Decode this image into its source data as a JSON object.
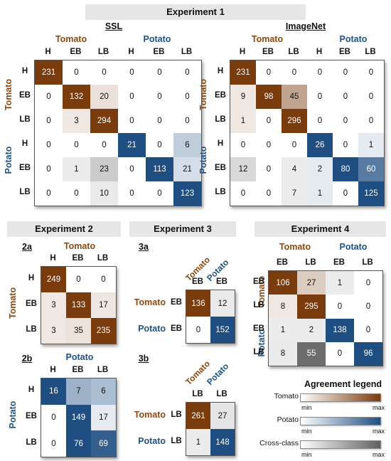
{
  "colors": {
    "tomato_text": "#8c4a12",
    "potato_text": "#1e5285",
    "tomato_max": "#7a3b0d",
    "potato_max": "#1f4f82",
    "cross_max": "#606060"
  },
  "experiment1": {
    "title": "Experiment 1",
    "ssl": {
      "title": "SSL",
      "group_tomato": "Tomato",
      "group_potato": "Potato",
      "labels": [
        "H",
        "EB",
        "LB",
        "H",
        "EB",
        "LB"
      ],
      "values": [
        [
          231,
          0,
          0,
          0,
          0,
          0
        ],
        [
          0,
          132,
          20,
          0,
          0,
          0
        ],
        [
          0,
          3,
          294,
          0,
          0,
          0
        ],
        [
          0,
          0,
          0,
          21,
          0,
          6
        ],
        [
          0,
          1,
          23,
          0,
          113,
          21
        ],
        [
          0,
          0,
          10,
          0,
          0,
          123
        ]
      ]
    },
    "imagenet": {
      "title": "ImageNet",
      "group_tomato": "Tomato",
      "group_potato": "Potato",
      "labels": [
        "H",
        "EB",
        "LB",
        "H",
        "EB",
        "LB"
      ],
      "values": [
        [
          231,
          0,
          0,
          0,
          0,
          0
        ],
        [
          9,
          98,
          45,
          0,
          0,
          0
        ],
        [
          1,
          0,
          296,
          0,
          0,
          0
        ],
        [
          0,
          0,
          0,
          26,
          0,
          1
        ],
        [
          12,
          0,
          4,
          2,
          80,
          60
        ],
        [
          0,
          0,
          7,
          1,
          0,
          125
        ]
      ]
    }
  },
  "experiment2": {
    "title": "Experiment 2",
    "a": {
      "title": "2a",
      "group": "Tomato",
      "labels": [
        "H",
        "EB",
        "LB"
      ],
      "values": [
        [
          249,
          0,
          0
        ],
        [
          3,
          133,
          17
        ],
        [
          3,
          35,
          235
        ]
      ]
    },
    "b": {
      "title": "2b",
      "group": "Potato",
      "labels": [
        "H",
        "EB",
        "LB"
      ],
      "values": [
        [
          16,
          7,
          6
        ],
        [
          0,
          149,
          17
        ],
        [
          0,
          76,
          69
        ]
      ]
    }
  },
  "experiment3": {
    "title": "Experiment 3",
    "a": {
      "title": "3a",
      "col_groups": [
        "Tomato",
        "Potato"
      ],
      "col_labels": [
        "EB",
        "EB"
      ],
      "row_groups": [
        "Tomato",
        "Potato"
      ],
      "row_labels": [
        "EB",
        "EB"
      ],
      "values": [
        [
          136,
          12
        ],
        [
          0,
          152
        ]
      ]
    },
    "b": {
      "title": "3b",
      "col_groups": [
        "Tomato",
        "Potato"
      ],
      "col_labels": [
        "LB",
        "LB"
      ],
      "row_groups": [
        "Tomato",
        "Potato"
      ],
      "row_labels": [
        "LB",
        "LB"
      ],
      "values": [
        [
          261,
          27
        ],
        [
          1,
          148
        ]
      ]
    }
  },
  "experiment4": {
    "title": "Experiment 4",
    "group_tomato": "Tomato",
    "group_potato": "Potato",
    "labels": [
      "EB",
      "LB",
      "EB",
      "LB"
    ],
    "values": [
      [
        106,
        27,
        1,
        0
      ],
      [
        8,
        295,
        0,
        0
      ],
      [
        1,
        2,
        138,
        0
      ],
      [
        8,
        55,
        0,
        96
      ]
    ]
  },
  "legend": {
    "title": "Agreement legend",
    "entries": [
      {
        "label": "Tomato",
        "min": "min",
        "max": "max"
      },
      {
        "label": "Potato",
        "min": "min",
        "max": "max"
      },
      {
        "label": "Cross-class",
        "min": "min",
        "max": "max"
      }
    ]
  }
}
